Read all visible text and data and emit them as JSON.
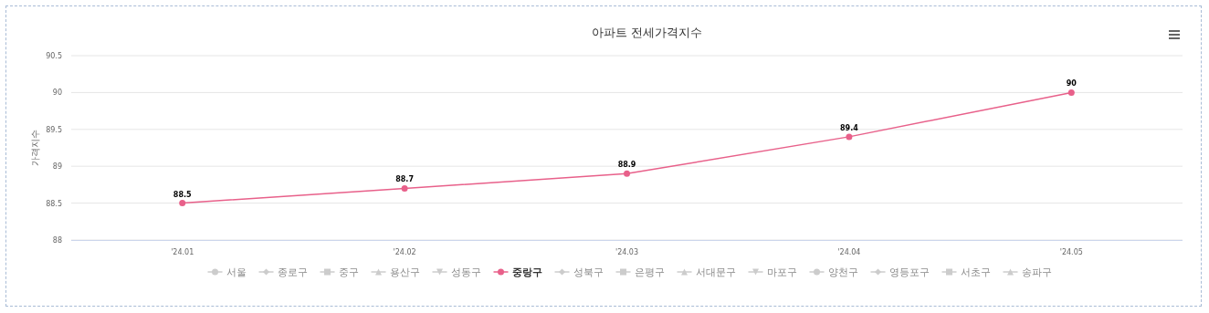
{
  "chart_data": {
    "type": "line",
    "title": "아파트 전세가격지수",
    "ylabel": "가격지수",
    "categories": [
      "'24.01",
      "'24.02",
      "'24.03",
      "'24.04",
      "'24.05"
    ],
    "ylim": [
      88,
      90.5
    ],
    "yticks": [
      88,
      88.5,
      89,
      89.5,
      90,
      90.5
    ],
    "grid": "y",
    "legend": "bottom",
    "data_labels": true,
    "line_style": "solid",
    "series": [
      {
        "name": "서울",
        "color": "#cccccc",
        "marker": "circle",
        "values": [
          null,
          null,
          null,
          null,
          null
        ]
      },
      {
        "name": "종로구",
        "color": "#cccccc",
        "marker": "diamond",
        "values": [
          null,
          null,
          null,
          null,
          null
        ]
      },
      {
        "name": "중구",
        "color": "#cccccc",
        "marker": "square",
        "values": [
          null,
          null,
          null,
          null,
          null
        ]
      },
      {
        "name": "용산구",
        "color": "#cccccc",
        "marker": "triangle",
        "values": [
          null,
          null,
          null,
          null,
          null
        ]
      },
      {
        "name": "성동구",
        "color": "#cccccc",
        "marker": "triangle-down",
        "values": [
          null,
          null,
          null,
          null,
          null
        ]
      },
      {
        "name": "중랑구",
        "color": "#e8608a",
        "marker": "circle",
        "values": [
          88.5,
          88.7,
          88.9,
          89.4,
          90
        ]
      },
      {
        "name": "성북구",
        "color": "#cccccc",
        "marker": "diamond",
        "values": [
          null,
          null,
          null,
          null,
          null
        ]
      },
      {
        "name": "은평구",
        "color": "#cccccc",
        "marker": "square",
        "values": [
          null,
          null,
          null,
          null,
          null
        ]
      },
      {
        "name": "서대문구",
        "color": "#cccccc",
        "marker": "triangle",
        "values": [
          null,
          null,
          null,
          null,
          null
        ]
      },
      {
        "name": "마포구",
        "color": "#cccccc",
        "marker": "triangle-down",
        "values": [
          null,
          null,
          null,
          null,
          null
        ]
      },
      {
        "name": "양천구",
        "color": "#cccccc",
        "marker": "circle",
        "values": [
          null,
          null,
          null,
          null,
          null
        ]
      },
      {
        "name": "영등포구",
        "color": "#cccccc",
        "marker": "diamond",
        "values": [
          null,
          null,
          null,
          null,
          null
        ]
      },
      {
        "name": "서초구",
        "color": "#cccccc",
        "marker": "square",
        "values": [
          null,
          null,
          null,
          null,
          null
        ]
      },
      {
        "name": "송파구",
        "color": "#cccccc",
        "marker": "triangle",
        "values": [
          null,
          null,
          null,
          null,
          null
        ]
      }
    ]
  }
}
